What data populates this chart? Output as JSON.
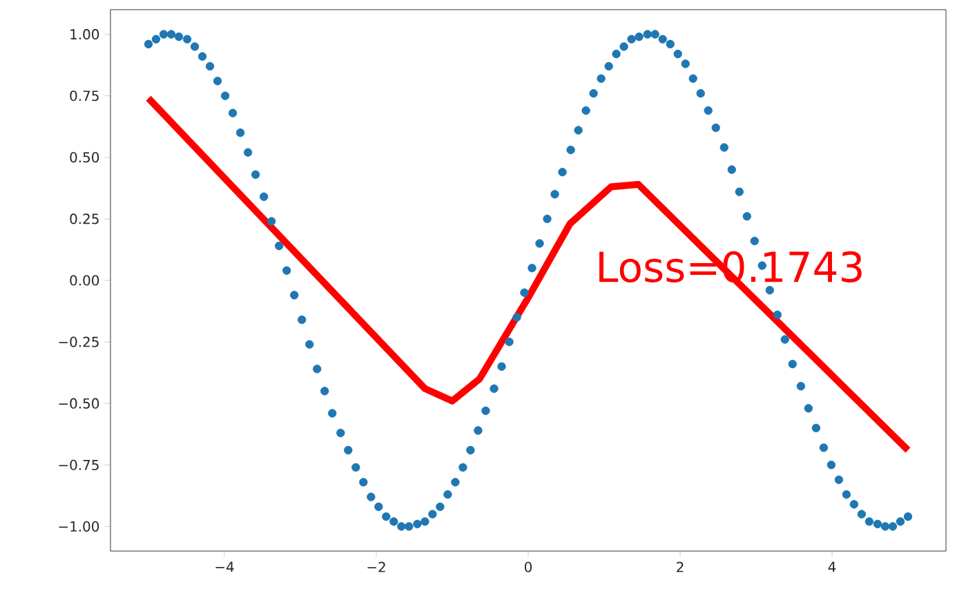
{
  "chart_data": {
    "type": "scatter",
    "xlim": [
      -5.5,
      5.5
    ],
    "ylim": [
      -1.1,
      1.1
    ],
    "xticks": [
      {
        "value": -4,
        "label": "−4"
      },
      {
        "value": -2,
        "label": "−2"
      },
      {
        "value": 0,
        "label": "0"
      },
      {
        "value": 2,
        "label": "2"
      },
      {
        "value": 4,
        "label": "4"
      }
    ],
    "yticks": [
      {
        "value": -1,
        "label": "−1.00"
      },
      {
        "value": -0.75,
        "label": "−0.75"
      },
      {
        "value": -0.5,
        "label": "−0.50"
      },
      {
        "value": -0.25,
        "label": "−0.25"
      },
      {
        "value": 0,
        "label": "0.00"
      },
      {
        "value": 0.25,
        "label": "0.25"
      },
      {
        "value": 0.5,
        "label": "0.50"
      },
      {
        "value": 0.75,
        "label": "0.75"
      },
      {
        "value": 1,
        "label": "1.00"
      }
    ],
    "annotations": [
      "Loss=0.1743"
    ],
    "series": [
      {
        "marker": "circle",
        "color": "#1f77b4",
        "x": [
          -5.0,
          -4.9,
          -4.8,
          -4.7,
          -4.6,
          -4.49,
          -4.39,
          -4.29,
          -4.19,
          -4.09,
          -3.99,
          -3.89,
          -3.79,
          -3.69,
          -3.59,
          -3.48,
          -3.38,
          -3.28,
          -3.18,
          -3.08,
          -2.98,
          -2.88,
          -2.78,
          -2.68,
          -2.58,
          -2.47,
          -2.37,
          -2.27,
          -2.17,
          -2.07,
          -1.97,
          -1.87,
          -1.77,
          -1.67,
          -1.57,
          -1.46,
          -1.36,
          -1.26,
          -1.16,
          -1.06,
          -0.96,
          -0.86,
          -0.76,
          -0.66,
          -0.56,
          -0.45,
          -0.35,
          -0.25,
          -0.15,
          -0.05,
          0.05,
          0.15,
          0.25,
          0.35,
          0.45,
          0.56,
          0.66,
          0.76,
          0.86,
          0.96,
          1.06,
          1.16,
          1.26,
          1.36,
          1.46,
          1.57,
          1.67,
          1.77,
          1.87,
          1.97,
          2.07,
          2.17,
          2.27,
          2.37,
          2.47,
          2.58,
          2.68,
          2.78,
          2.88,
          2.98,
          3.08,
          3.18,
          3.28,
          3.38,
          3.48,
          3.59,
          3.69,
          3.79,
          3.89,
          3.99,
          4.09,
          4.19,
          4.29,
          4.39,
          4.49,
          4.6,
          4.7,
          4.8,
          4.9,
          5.0
        ],
        "values": [
          0.96,
          0.98,
          1.0,
          1.0,
          0.99,
          0.98,
          0.95,
          0.91,
          0.87,
          0.81,
          0.75,
          0.68,
          0.6,
          0.52,
          0.43,
          0.34,
          0.24,
          0.14,
          0.04,
          -0.06,
          -0.16,
          -0.26,
          -0.36,
          -0.45,
          -0.54,
          -0.62,
          -0.69,
          -0.76,
          -0.82,
          -0.88,
          -0.92,
          -0.96,
          -0.98,
          -1.0,
          -1.0,
          -0.99,
          -0.98,
          -0.95,
          -0.92,
          -0.87,
          -0.82,
          -0.76,
          -0.69,
          -0.61,
          -0.53,
          -0.44,
          -0.35,
          -0.25,
          -0.15,
          -0.05,
          0.05,
          0.15,
          0.25,
          0.35,
          0.44,
          0.53,
          0.61,
          0.69,
          0.76,
          0.82,
          0.87,
          0.92,
          0.95,
          0.98,
          0.99,
          1.0,
          1.0,
          0.98,
          0.96,
          0.92,
          0.88,
          0.82,
          0.76,
          0.69,
          0.62,
          0.54,
          0.45,
          0.36,
          0.26,
          0.16,
          0.06,
          -0.04,
          -0.14,
          -0.24,
          -0.34,
          -0.43,
          -0.52,
          -0.6,
          -0.68,
          -0.75,
          -0.81,
          -0.87,
          -0.91,
          -0.95,
          -0.98,
          -0.99,
          -1.0,
          -1.0,
          -0.98,
          -0.96
        ]
      },
      {
        "type": "line",
        "marker": "none",
        "line_style": "solid",
        "color": "#ff0000",
        "x": [
          -5.0,
          -1.36,
          -1.0,
          -0.64,
          0.0,
          0.55,
          1.09,
          1.45,
          5.0
        ],
        "values": [
          0.74,
          -0.44,
          -0.49,
          -0.4,
          -0.07,
          0.23,
          0.38,
          0.39,
          -0.69
        ]
      }
    ]
  }
}
